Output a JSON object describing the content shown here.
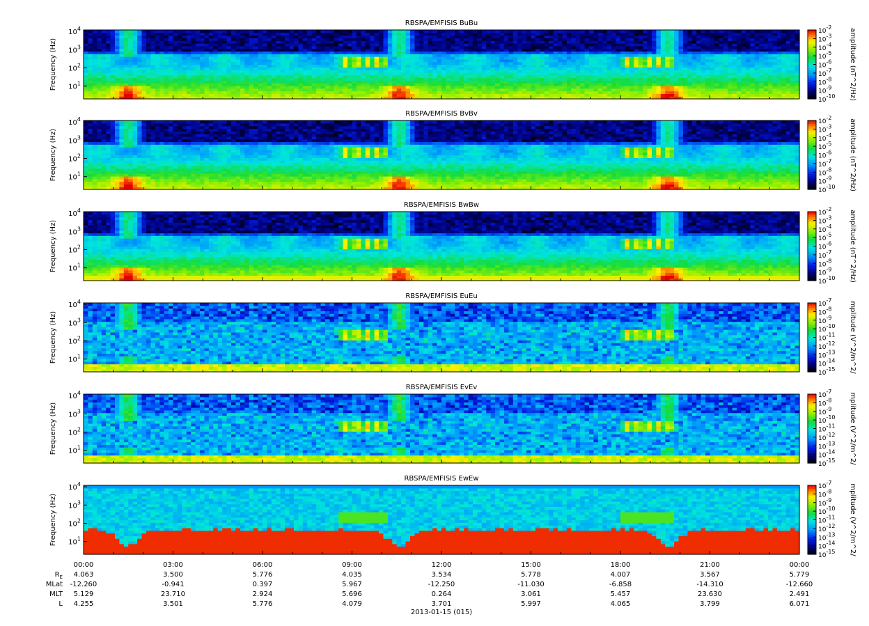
{
  "chart_data": {
    "type": "heatmap",
    "date_label": "2013-01-15 (015)",
    "time_ticks": [
      "00:00",
      "03:00",
      "06:00",
      "09:00",
      "12:00",
      "15:00",
      "18:00",
      "21:00",
      "00:00"
    ],
    "ylabel": "Frequency (Hz)",
    "y_scale": "log",
    "ylim_hz": [
      2,
      12000
    ],
    "y_ticks": [
      {
        "exp": 1,
        "label_base": "10",
        "label_exp": "1"
      },
      {
        "exp": 2,
        "label_base": "10",
        "label_exp": "2"
      },
      {
        "exp": 3,
        "label_base": "10",
        "label_exp": "3"
      },
      {
        "exp": 4,
        "label_base": "10",
        "label_exp": "4"
      }
    ],
    "panels": [
      {
        "title": "RBSPA/EMFISIS  BuBu",
        "colorbar_label": "amplitude (nT^2/Hz)",
        "colorbar_ticks": [
          "10^-2",
          "10^-3",
          "10^-4",
          "10^-5",
          "10^-6",
          "10^-7",
          "10^-8",
          "10^-9",
          "10^-10"
        ],
        "cb_exp_top": -2,
        "cb_exp_bottom": -10,
        "kind": "B"
      },
      {
        "title": "RBSPA/EMFISIS  BvBv",
        "colorbar_label": "amplitude (nT^2/Hz)",
        "colorbar_ticks": [
          "10^-2",
          "10^-3",
          "10^-4",
          "10^-5",
          "10^-6",
          "10^-7",
          "10^-8",
          "10^-9",
          "10^-10"
        ],
        "cb_exp_top": -2,
        "cb_exp_bottom": -10,
        "kind": "B"
      },
      {
        "title": "RBSPA/EMFISIS  BwBw",
        "colorbar_label": "amplitude (nT^2/Hz)",
        "colorbar_ticks": [
          "10^-2",
          "10^-3",
          "10^-4",
          "10^-5",
          "10^-6",
          "10^-7",
          "10^-8",
          "10^-9",
          "10^-10"
        ],
        "cb_exp_top": -2,
        "cb_exp_bottom": -10,
        "kind": "Bw"
      },
      {
        "title": "RBSPA/EMFISIS  EuEu",
        "colorbar_label": "mplitude (V^2/m^2/",
        "colorbar_ticks": [
          "10^-7",
          "10^-8",
          "10^-9",
          "10^-10",
          "10^-11",
          "10^-12",
          "10^-13",
          "10^-14",
          "10^-15"
        ],
        "cb_exp_top": -7,
        "cb_exp_bottom": -15,
        "kind": "E"
      },
      {
        "title": "RBSPA/EMFISIS  EvEv",
        "colorbar_label": "mplitude (V^2/m^2/",
        "colorbar_ticks": [
          "10^-7",
          "10^-8",
          "10^-9",
          "10^-10",
          "10^-11",
          "10^-12",
          "10^-13",
          "10^-14",
          "10^-15"
        ],
        "cb_exp_top": -7,
        "cb_exp_bottom": -15,
        "kind": "E"
      },
      {
        "title": "RBSPA/EMFISIS  EwEw",
        "colorbar_label": "mplitude (V^2/m^2/",
        "colorbar_ticks": [
          "10^-7",
          "10^-8",
          "10^-9",
          "10^-10",
          "10^-11",
          "10^-12",
          "10^-13",
          "10^-14",
          "10^-15"
        ],
        "cb_exp_top": -7,
        "cb_exp_bottom": -15,
        "kind": "Ew"
      }
    ],
    "ephemeris": [
      {
        "label": "R",
        "label_sub": "E",
        "values": [
          "4.063",
          "3.500",
          "5.776",
          "4.035",
          "3.534",
          "5.778",
          "4.007",
          "3.567",
          "5.779"
        ]
      },
      {
        "label": "MLat",
        "values": [
          "-12.260",
          "-0.941",
          "0.397",
          "5.967",
          "-12.250",
          "-11.030",
          "-6.858",
          "-14.310",
          "-12.660"
        ]
      },
      {
        "label": "MLT",
        "values": [
          "5.129",
          "23.710",
          "2.924",
          "5.696",
          "0.264",
          "3.061",
          "5.457",
          "23.630",
          "2.491"
        ]
      },
      {
        "label": "L",
        "values": [
          "4.255",
          "3.501",
          "5.776",
          "4.079",
          "3.701",
          "5.997",
          "4.065",
          "3.799",
          "6.071"
        ]
      }
    ],
    "features": {
      "perigee_hours": [
        1.5,
        10.6,
        19.6
      ],
      "chorus_bursts_hours": [
        [
          8.5,
          10.2
        ],
        [
          18.0,
          19.8
        ]
      ],
      "hiss_band_hz": [
        60,
        600
      ]
    }
  }
}
